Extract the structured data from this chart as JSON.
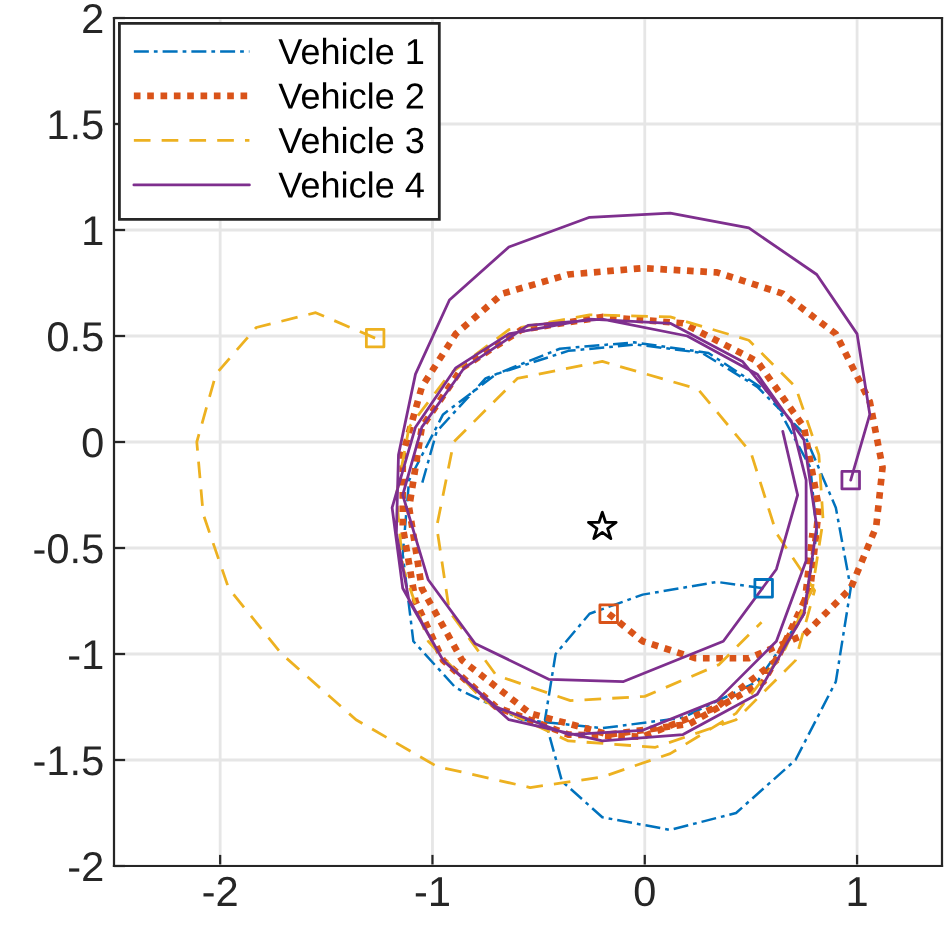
{
  "chart_data": {
    "type": "line",
    "xlim": [
      -2.5,
      1.4
    ],
    "ylim": [
      -2,
      2
    ],
    "xticks": [
      -2,
      -1,
      0,
      1
    ],
    "yticks": [
      -2,
      -1.5,
      -1,
      -0.5,
      0,
      0.5,
      1,
      1.5,
      2
    ],
    "grid": true,
    "legend": "top left",
    "series": [
      {
        "name": "Vehicle 1",
        "color": "#0072bd",
        "line_style": "dashdot",
        "x": [
          0.56,
          0.34,
          -0.01,
          -0.26,
          -0.42,
          -0.47,
          -0.39,
          -0.2,
          0.12,
          0.43,
          0.71,
          0.9,
          0.97,
          0.9,
          0.75,
          0.53,
          0.27,
          -0.04,
          -0.36,
          -0.7,
          -0.95,
          -1.11,
          -1.14,
          -1.09,
          -0.89,
          -0.58,
          -0.2,
          0.18,
          0.53,
          0.75,
          0.81,
          0.78,
          0.59,
          0.3,
          -0.05,
          -0.4,
          -0.75,
          -0.98,
          -1.05
        ],
        "values": [
          -0.69,
          -0.66,
          -0.72,
          -0.81,
          -1.0,
          -1.31,
          -1.6,
          -1.77,
          -1.83,
          -1.75,
          -1.5,
          -1.13,
          -0.69,
          -0.31,
          0.04,
          0.26,
          0.42,
          0.46,
          0.43,
          0.32,
          0.13,
          -0.18,
          -0.53,
          -0.94,
          -1.16,
          -1.31,
          -1.35,
          -1.3,
          -1.13,
          -0.81,
          -0.43,
          -0.12,
          0.23,
          0.42,
          0.47,
          0.44,
          0.3,
          0.05,
          -0.2
        ]
      },
      {
        "name": "Vehicle 2",
        "color": "#d95319",
        "line_style": "dotted",
        "x": [
          -0.17,
          -0.01,
          0.24,
          0.49,
          0.75,
          0.97,
          1.09,
          1.12,
          1.06,
          0.9,
          0.65,
          0.34,
          -0.01,
          -0.36,
          -0.67,
          -0.89,
          -1.05,
          -1.14,
          -1.14,
          -1.08,
          -0.95,
          -0.7,
          -0.36,
          -0.01,
          0.34,
          0.62,
          0.78,
          0.82,
          0.75,
          0.53,
          0.18,
          -0.2,
          -0.58,
          -0.86,
          -1.05,
          -1.11,
          -1.05,
          -0.86,
          -0.54,
          -0.17,
          0.21,
          0.56,
          0.75,
          0.79
        ],
        "values": [
          -0.81,
          -0.94,
          -1.02,
          -1.02,
          -0.91,
          -0.69,
          -0.4,
          -0.12,
          0.19,
          0.51,
          0.7,
          0.8,
          0.82,
          0.79,
          0.7,
          0.51,
          0.26,
          -0.06,
          -0.4,
          -0.75,
          -1.03,
          -1.25,
          -1.38,
          -1.39,
          -1.25,
          -1.03,
          -0.69,
          -0.31,
          0.07,
          0.38,
          0.56,
          0.59,
          0.53,
          0.35,
          0.07,
          -0.31,
          -0.69,
          -1.03,
          -1.28,
          -1.38,
          -1.33,
          -1.13,
          -0.79,
          -0.43
        ]
      },
      {
        "name": "Vehicle 3",
        "color": "#edb120",
        "line_style": "dashed",
        "x": [
          -1.27,
          -1.55,
          -1.83,
          -2.02,
          -2.11,
          -2.08,
          -1.96,
          -1.71,
          -1.36,
          -0.98,
          -0.54,
          -0.2,
          0.12,
          0.43,
          0.65,
          0.79,
          0.84,
          0.82,
          0.71,
          0.49,
          0.12,
          -0.26,
          -0.64,
          -0.92,
          -1.11,
          -1.17,
          -1.14,
          -1.02,
          -0.76,
          -0.36,
          0.05,
          0.43,
          0.71,
          0.8,
          0.62,
          0.5,
          0.25,
          -0.2,
          -0.6,
          -0.9,
          -0.98,
          -0.92,
          -0.7,
          -0.35,
          0.0,
          0.35,
          0.55
        ],
        "values": [
          0.49,
          0.61,
          0.54,
          0.32,
          0.0,
          -0.34,
          -0.69,
          -1.0,
          -1.31,
          -1.53,
          -1.63,
          -1.58,
          -1.47,
          -1.28,
          -1.0,
          -0.69,
          -0.37,
          -0.06,
          0.26,
          0.48,
          0.59,
          0.6,
          0.53,
          0.32,
          0.07,
          -0.25,
          -0.59,
          -0.94,
          -1.22,
          -1.41,
          -1.44,
          -1.31,
          -1.03,
          -0.7,
          -0.43,
          -0.05,
          0.25,
          0.38,
          0.3,
          0.0,
          -0.4,
          -0.8,
          -1.1,
          -1.22,
          -1.2,
          -1.05,
          -0.85
        ]
      },
      {
        "name": "Vehicle 4",
        "color": "#7e2f8e",
        "line_style": "solid",
        "x": [
          0.97,
          1.06,
          1.0,
          0.81,
          0.49,
          0.12,
          -0.26,
          -0.64,
          -0.92,
          -1.08,
          -1.16,
          -1.17,
          -1.11,
          -0.95,
          -0.7,
          -0.36,
          -0.01,
          0.34,
          0.62,
          0.76,
          0.76,
          0.69,
          0.46,
          0.12,
          -0.26,
          -0.64,
          -0.89,
          -1.08,
          -1.19,
          -1.14,
          -0.95,
          -0.64,
          -0.2,
          0.18,
          0.53,
          0.75,
          0.81,
          0.75,
          0.53,
          0.2,
          -0.2,
          -0.55,
          -0.85,
          -1.05,
          -1.14,
          -1.02,
          -0.8,
          -0.45,
          -0.1,
          0.37,
          0.62,
          0.72,
          0.65
        ],
        "values": [
          -0.18,
          0.13,
          0.51,
          0.79,
          1.01,
          1.08,
          1.06,
          0.92,
          0.67,
          0.32,
          -0.06,
          -0.43,
          -0.75,
          -1.03,
          -1.25,
          -1.38,
          -1.36,
          -1.22,
          -0.94,
          -0.56,
          -0.18,
          0.1,
          0.38,
          0.56,
          0.58,
          0.51,
          0.35,
          0.07,
          -0.31,
          -0.69,
          -1.03,
          -1.31,
          -1.41,
          -1.38,
          -1.19,
          -0.81,
          -0.4,
          0.01,
          0.32,
          0.5,
          0.58,
          0.55,
          0.35,
          0.07,
          -0.25,
          -0.65,
          -0.95,
          -1.12,
          -1.13,
          -0.94,
          -0.6,
          -0.25,
          0.05
        ]
      },
      {
        "type": "scatter",
        "marker": "square",
        "x": [
          0.56,
          -0.17,
          -1.27,
          0.97
        ],
        "values": [
          -0.69,
          -0.81,
          0.49,
          -0.18
        ],
        "colors": [
          "#0072bd",
          "#d95319",
          "#edb120",
          "#7e2f8e"
        ]
      },
      {
        "type": "scatter",
        "marker": "star",
        "x": [
          -0.2
        ],
        "values": [
          -0.4
        ],
        "color": "#000000"
      }
    ]
  }
}
